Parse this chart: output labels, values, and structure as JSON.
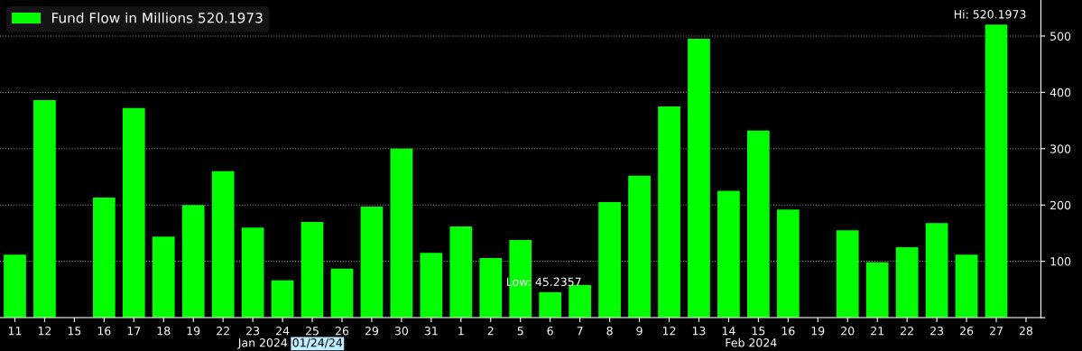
{
  "chart_data": {
    "type": "bar",
    "categories": [
      "11",
      "12",
      "15",
      "16",
      "17",
      "18",
      "19",
      "22",
      "23",
      "24",
      "25",
      "26",
      "29",
      "30",
      "31",
      "1",
      "2",
      "5",
      "6",
      "7",
      "8",
      "9",
      "12",
      "13",
      "14",
      "15",
      "16",
      "19",
      "20",
      "21",
      "22",
      "23",
      "26",
      "27",
      "28"
    ],
    "series": [
      {
        "name": "Fund Flow in Millions 520.1973",
        "color": "#00ff00",
        "values": [
          112,
          386,
          null,
          213,
          372,
          144,
          200,
          260,
          160,
          66,
          170,
          87,
          197,
          300,
          115,
          162,
          106,
          138,
          45.2357,
          58,
          205,
          252,
          375,
          495,
          225,
          332,
          192,
          null,
          155,
          98,
          125,
          168,
          112,
          520.1973,
          null
        ]
      }
    ],
    "ylim": [
      0,
      564
    ],
    "yticks": [
      {
        "value": 0,
        "label": null
      },
      100,
      200,
      300,
      400,
      500
    ],
    "grid": "y",
    "legend": "top left",
    "annotations": [
      {
        "text": "Low: 45.2357",
        "x": "6",
        "y": 45.2357
      },
      {
        "text": "Hi: 520.1973",
        "x": "27",
        "y": 520.1973
      },
      "Jan 2024",
      "01/24/24",
      "Feb 2024"
    ]
  }
}
